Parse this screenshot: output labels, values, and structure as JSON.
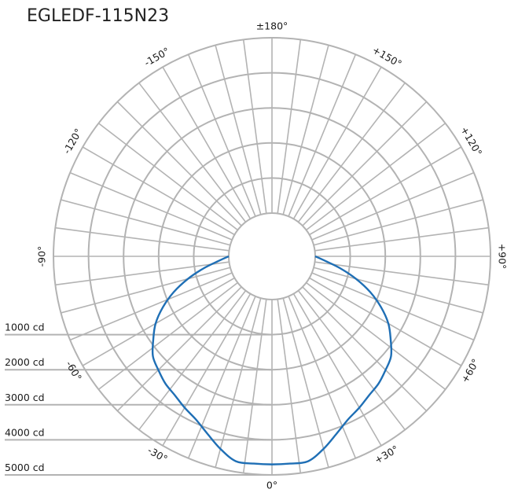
{
  "chart_data": {
    "type": "polar",
    "title": "EGLEDF-115N23",
    "radial_unit": "cd",
    "radial_range": [
      0,
      5000
    ],
    "rings": [
      1000,
      2000,
      3000,
      4000,
      5000
    ],
    "ring_labels": [
      "1000 cd",
      "2000 cd",
      "3000 cd",
      "4000 cd",
      "5000 cd"
    ],
    "angle_step_deg": 7.5,
    "angle_labels": [
      {
        "angle": 0,
        "text": "0°"
      },
      {
        "angle": 30,
        "text": "+30°"
      },
      {
        "angle": -30,
        "text": "-30°"
      },
      {
        "angle": 60,
        "text": "+60°"
      },
      {
        "angle": -60,
        "text": "-60°"
      },
      {
        "angle": 90,
        "text": "+90°"
      },
      {
        "angle": -90,
        "text": "-90°"
      },
      {
        "angle": 120,
        "text": "+120°"
      },
      {
        "angle": -120,
        "text": "-120°"
      },
      {
        "angle": 150,
        "text": "+150°"
      },
      {
        "angle": -150,
        "text": "-150°"
      },
      {
        "angle": 180,
        "text": "±180°"
      }
    ],
    "series": [
      {
        "color": "#1f6fb5",
        "angles": [
          0,
          5,
          10,
          15,
          20,
          25,
          30,
          35,
          40,
          45,
          50,
          55,
          60,
          65,
          70,
          75,
          80,
          85,
          90
        ],
        "values": [
          4700,
          4700,
          4700,
          4450,
          4150,
          3900,
          3750,
          3600,
          3500,
          3350,
          3200,
          2900,
          2600,
          2200,
          1750,
          1250,
          750,
          300,
          0
        ],
        "symmetric": true
      }
    ],
    "colors": {
      "grid": "#b3b3b3",
      "curve": "#1f6fb5"
    }
  }
}
